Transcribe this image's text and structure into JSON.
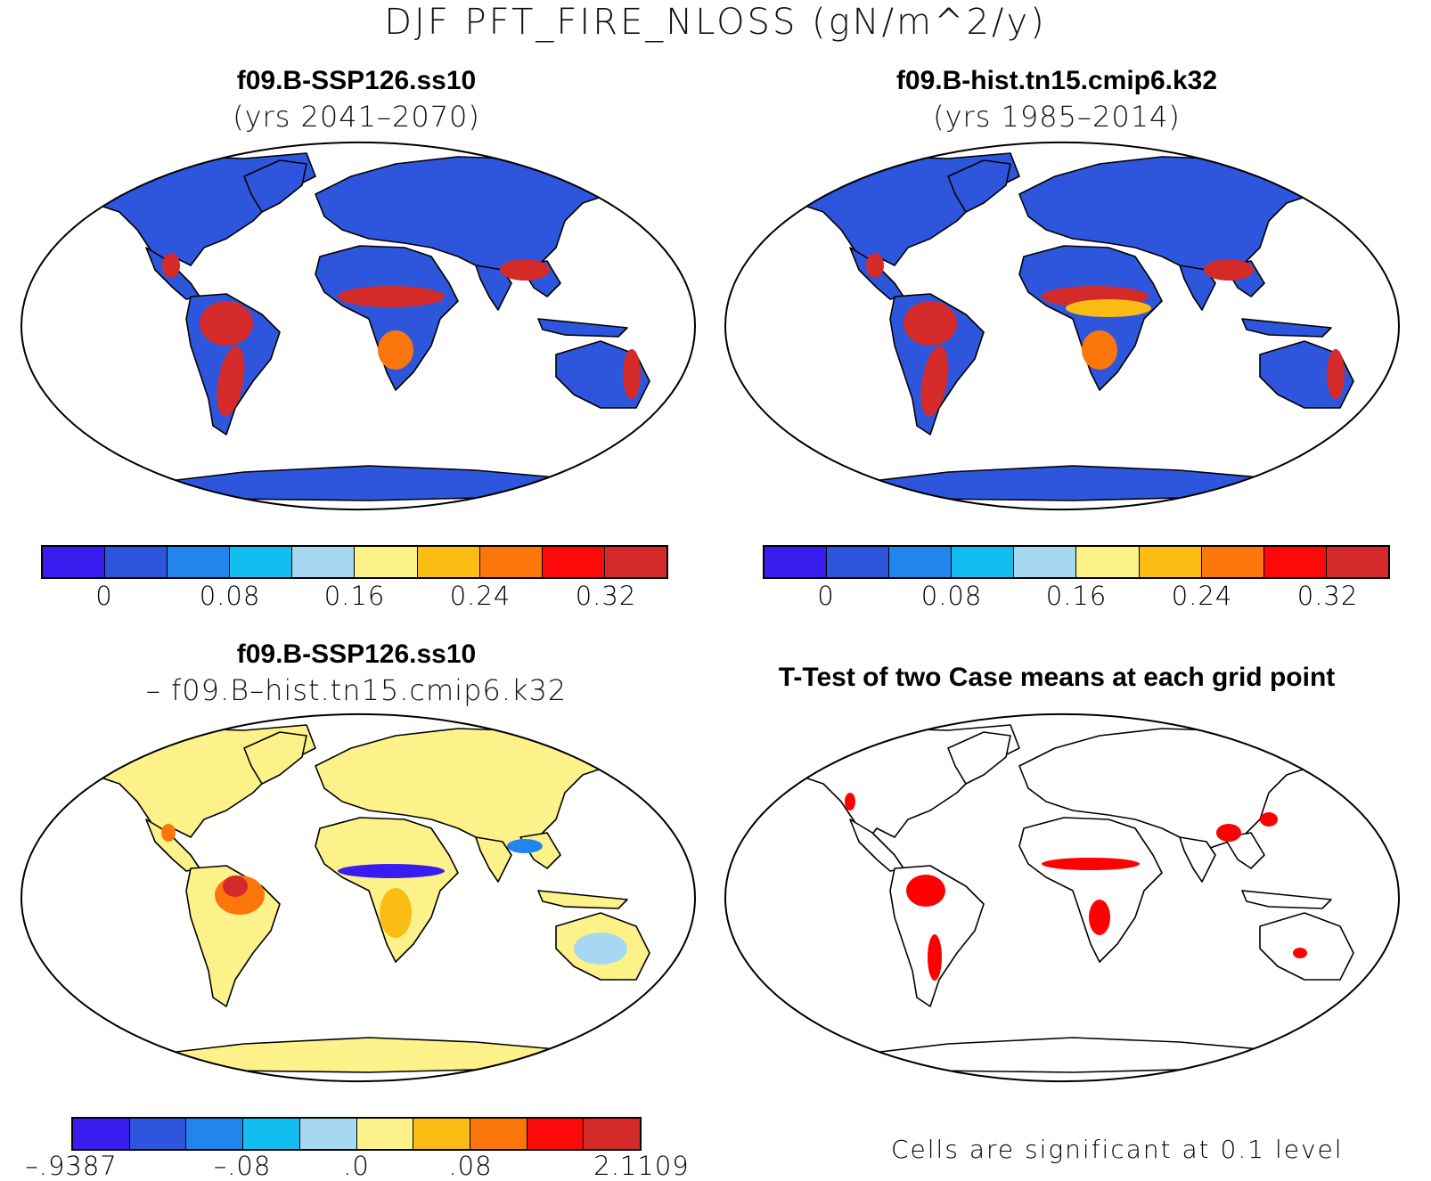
{
  "title": "DJF PFT_FIRE_NLOSS (gN/m^2/y)",
  "panels": [
    {
      "title": "f09.B-SSP126.ss10",
      "subtitle": "(yrs 2041–2070)"
    },
    {
      "title": "f09.B-hist.tn15.cmip6.k32",
      "subtitle": "(yrs 1985–2014)"
    },
    {
      "title": "f09.B-SSP126.ss10",
      "subtitle": "– f09.B–hist.tn15.cmip6.k32"
    },
    {
      "title": "T-Test of two Case means at each grid point",
      "subtitle": ""
    }
  ],
  "colorbar_colors": [
    "#3b1cf0",
    "#2e56dc",
    "#2285ee",
    "#12bdf0",
    "#a6d8f2",
    "#fdf28a",
    "#fbbd14",
    "#fb770c",
    "#fc0a0a",
    "#d42a2a"
  ],
  "colorbar_top_ticks": [
    "0",
    "0.08",
    "0.16",
    "0.24",
    "0.32"
  ],
  "colorbar_diff_ticks": [
    "–.9387",
    "–.08",
    ".0",
    ".08",
    "2.1109"
  ],
  "significance_note": "Cells are significant at 0.1 level",
  "map_colors": {
    "low": "#2e56dc",
    "high": "#d42a2a",
    "mid": "#fdf28a",
    "sig": "#ff0000",
    "coast": "#000000"
  }
}
